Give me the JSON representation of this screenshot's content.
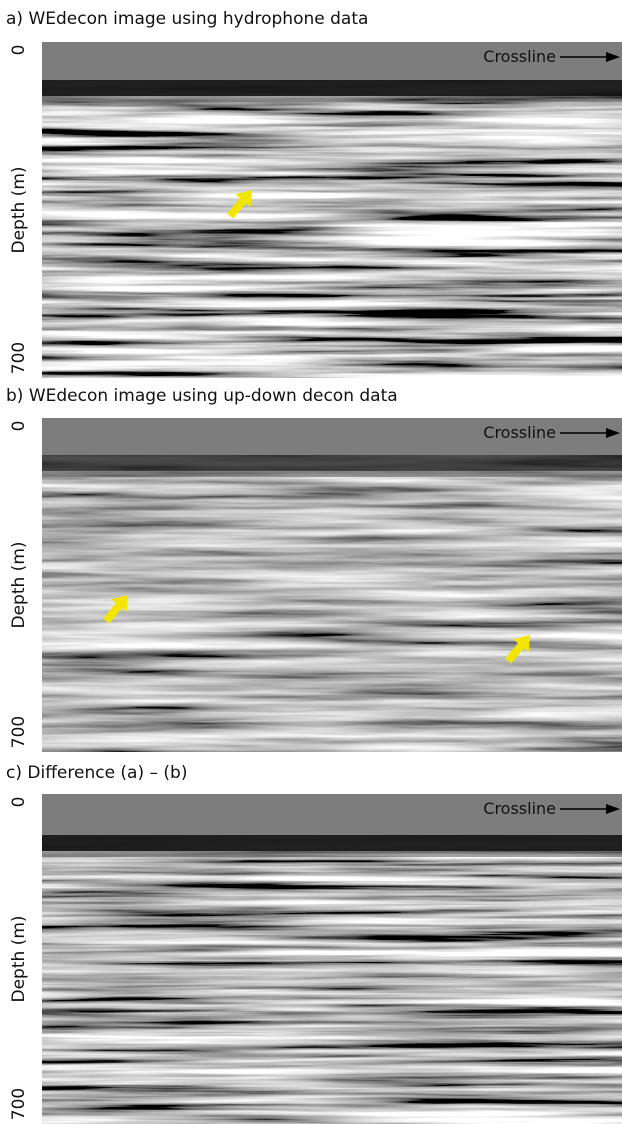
{
  "panels": [
    {
      "title": "a) WEdecon image using hydrophone data",
      "y_label": "Depth (m)",
      "y_top": "0",
      "y_bottom": "700",
      "direction": "Crossline"
    },
    {
      "title": "b) WEdecon image using up-down decon data",
      "y_label": "Depth (m)",
      "y_top": "0",
      "y_bottom": "700",
      "direction": "Crossline"
    },
    {
      "title": "c) Difference (a) – (b)",
      "y_label": "Depth (m)",
      "y_top": "0",
      "y_bottom": "700",
      "direction": "Crossline"
    }
  ]
}
